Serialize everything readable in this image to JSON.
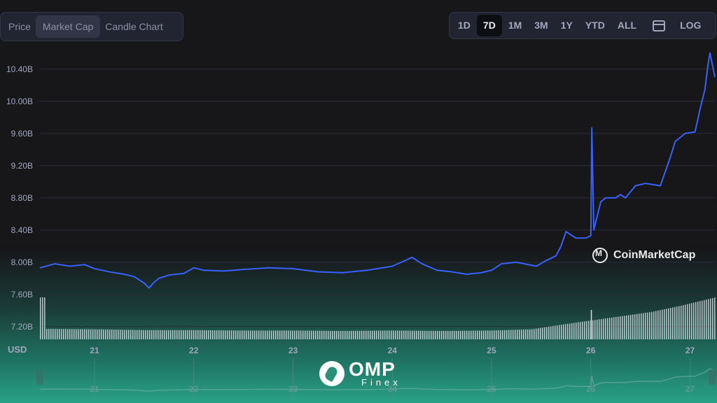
{
  "tabs": [
    "Price",
    "Market Cap",
    "Candle Chart"
  ],
  "active_tab": "Market Cap",
  "ranges": [
    "1D",
    "7D",
    "1M",
    "3M",
    "1Y",
    "YTD",
    "ALL"
  ],
  "active_range": "7D",
  "calendar_icon": "calendar-icon",
  "log_label": "LOG",
  "currency_label": "USD",
  "watermark": "CoinMarketCap",
  "brand": {
    "title": "OMP",
    "subtitle": "Finex"
  },
  "colors": {
    "line": "#3861fb",
    "accent": "#2aa287"
  },
  "chart_data": {
    "type": "line",
    "title": "",
    "xlabel": "",
    "ylabel": "USD",
    "x_ticks": [
      "21",
      "22",
      "23",
      "24",
      "25",
      "26",
      "27"
    ],
    "y_ticks": [
      "7.20B",
      "7.60B",
      "8.00B",
      "8.40B",
      "8.80B",
      "9.20B",
      "9.60B",
      "10.00B",
      "10.40B"
    ],
    "xlim": [
      20.45,
      27.25
    ],
    "ylim": [
      7.05,
      10.65
    ],
    "grid": true,
    "series": [
      {
        "name": "",
        "x": [
          20.45,
          20.6,
          20.75,
          20.9,
          21.0,
          21.15,
          21.3,
          21.4,
          21.5,
          21.55,
          21.6,
          21.65,
          21.75,
          21.9,
          22.0,
          22.1,
          22.3,
          22.5,
          22.75,
          23.0,
          23.25,
          23.5,
          23.75,
          24.0,
          24.2,
          24.3,
          24.45,
          24.6,
          24.75,
          24.9,
          25.0,
          25.1,
          25.25,
          25.45,
          25.55,
          25.65,
          25.7,
          25.75,
          25.85,
          25.95,
          26.0,
          26.01,
          26.03,
          26.1,
          26.15,
          26.25,
          26.3,
          26.35,
          26.45,
          26.55,
          26.7,
          26.8,
          26.85,
          26.95,
          27.05,
          27.1,
          27.15,
          27.18,
          27.2,
          27.25
        ],
        "values": [
          7.93,
          7.98,
          7.95,
          7.97,
          7.92,
          7.88,
          7.85,
          7.82,
          7.74,
          7.68,
          7.75,
          7.8,
          7.84,
          7.86,
          7.93,
          7.9,
          7.89,
          7.91,
          7.93,
          7.92,
          7.88,
          7.87,
          7.9,
          7.95,
          8.06,
          7.98,
          7.9,
          7.88,
          7.85,
          7.87,
          7.9,
          7.98,
          8.0,
          7.95,
          8.02,
          8.08,
          8.2,
          8.38,
          8.3,
          8.3,
          8.33,
          9.67,
          8.4,
          8.75,
          8.8,
          8.8,
          8.84,
          8.8,
          8.95,
          8.98,
          8.95,
          9.3,
          9.5,
          9.6,
          9.62,
          9.9,
          10.15,
          10.45,
          10.6,
          10.3
        ]
      }
    ],
    "volume": {
      "x": [
        20.5,
        21.0,
        21.5,
        22.0,
        22.5,
        23.0,
        23.5,
        24.0,
        24.5,
        25.0,
        25.4,
        25.7,
        26.0,
        26.3,
        26.6,
        26.9,
        27.25
      ],
      "values": [
        0.25,
        0.24,
        0.22,
        0.22,
        0.21,
        0.21,
        0.2,
        0.21,
        0.2,
        0.21,
        0.24,
        0.35,
        0.45,
        0.55,
        0.65,
        0.8,
        1.0
      ]
    }
  }
}
